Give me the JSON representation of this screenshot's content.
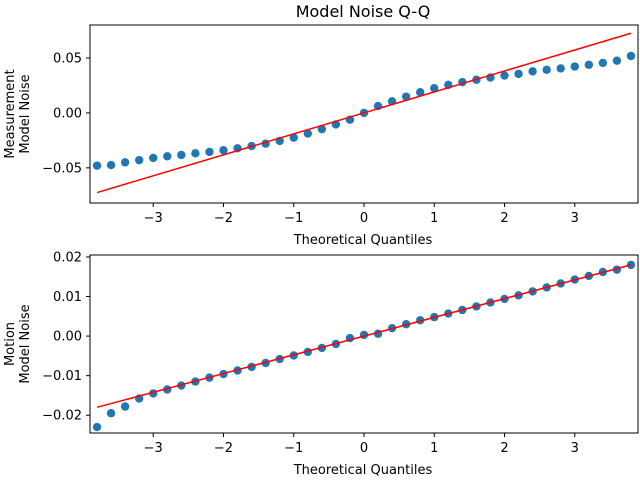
{
  "title": "Model Noise Q-Q",
  "colors": {
    "points": "#1f77b4",
    "line": "#ff0000"
  },
  "chart_data": [
    {
      "type": "scatter",
      "xlabel": "Theoretical Quantiles",
      "ylabel_lines": [
        "Measurement",
        "Model Noise"
      ],
      "xlim": [
        -3.9,
        3.9
      ],
      "ylim": [
        -0.082,
        0.08
      ],
      "x_ticks": [
        -3,
        -2,
        -1,
        0,
        1,
        2,
        3
      ],
      "x_tick_labels": [
        "−3",
        "−2",
        "−1",
        "0",
        "1",
        "2",
        "3"
      ],
      "y_ticks": [
        -0.05,
        0.0,
        0.05
      ],
      "y_tick_labels": [
        "−0.05",
        "0.00",
        "0.05"
      ],
      "reference_line": {
        "x": [
          -3.8,
          3.8
        ],
        "y": [
          -0.0725,
          0.0725
        ]
      },
      "points": [
        [
          -3.8,
          -0.048
        ],
        [
          -3.6,
          -0.0475
        ],
        [
          -3.4,
          -0.045
        ],
        [
          -3.2,
          -0.043
        ],
        [
          -3.0,
          -0.041
        ],
        [
          -2.8,
          -0.0395
        ],
        [
          -2.6,
          -0.0383
        ],
        [
          -2.4,
          -0.0368
        ],
        [
          -2.2,
          -0.0355
        ],
        [
          -2.0,
          -0.034
        ],
        [
          -1.8,
          -0.0322
        ],
        [
          -1.6,
          -0.0302
        ],
        [
          -1.4,
          -0.028
        ],
        [
          -1.2,
          -0.0255
        ],
        [
          -1.0,
          -0.0225
        ],
        [
          -0.8,
          -0.0188
        ],
        [
          -0.6,
          -0.0148
        ],
        [
          -0.4,
          -0.0105
        ],
        [
          -0.2,
          -0.0062
        ],
        [
          0.0,
          0.0
        ],
        [
          0.2,
          0.0062
        ],
        [
          0.4,
          0.0105
        ],
        [
          0.6,
          0.0148
        ],
        [
          0.8,
          0.0188
        ],
        [
          1.0,
          0.0225
        ],
        [
          1.2,
          0.0255
        ],
        [
          1.4,
          0.028
        ],
        [
          1.6,
          0.0302
        ],
        [
          1.8,
          0.0322
        ],
        [
          2.0,
          0.034
        ],
        [
          2.2,
          0.0355
        ],
        [
          2.4,
          0.0378
        ],
        [
          2.6,
          0.0392
        ],
        [
          2.8,
          0.0405
        ],
        [
          3.0,
          0.0422
        ],
        [
          3.2,
          0.0438
        ],
        [
          3.4,
          0.0455
        ],
        [
          3.6,
          0.0475
        ],
        [
          3.8,
          0.0518
        ]
      ]
    },
    {
      "type": "scatter",
      "xlabel": "Theoretical Quantiles",
      "ylabel_lines": [
        "Motion",
        "Model Noise"
      ],
      "xlim": [
        -3.9,
        3.9
      ],
      "ylim": [
        -0.0245,
        0.0205
      ],
      "x_ticks": [
        -3,
        -2,
        -1,
        0,
        1,
        2,
        3
      ],
      "x_tick_labels": [
        "−3",
        "−2",
        "−1",
        "0",
        "1",
        "2",
        "3"
      ],
      "y_ticks": [
        -0.02,
        -0.01,
        0.0,
        0.01,
        0.02
      ],
      "y_tick_labels": [
        "−0.02",
        "−0.01",
        "0.00",
        "0.01",
        "0.02"
      ],
      "reference_line": {
        "x": [
          -3.8,
          3.8
        ],
        "y": [
          -0.018,
          0.018
        ]
      },
      "points": [
        [
          -3.8,
          -0.023
        ],
        [
          -3.6,
          -0.0195
        ],
        [
          -3.4,
          -0.0178
        ],
        [
          -3.2,
          -0.0158
        ],
        [
          -3.0,
          -0.0145
        ],
        [
          -2.8,
          -0.0135
        ],
        [
          -2.6,
          -0.0125
        ],
        [
          -2.4,
          -0.0115
        ],
        [
          -2.2,
          -0.0105
        ],
        [
          -2.0,
          -0.0096
        ],
        [
          -1.8,
          -0.0087
        ],
        [
          -1.6,
          -0.0078
        ],
        [
          -1.4,
          -0.0068
        ],
        [
          -1.2,
          -0.0058
        ],
        [
          -1.0,
          -0.0049
        ],
        [
          -0.8,
          -0.004
        ],
        [
          -0.6,
          -0.003
        ],
        [
          -0.4,
          -0.002
        ],
        [
          -0.2,
          -0.0005
        ],
        [
          0.0,
          0.0003
        ],
        [
          0.2,
          0.0006
        ],
        [
          0.4,
          0.002
        ],
        [
          0.6,
          0.003
        ],
        [
          0.8,
          0.004
        ],
        [
          1.0,
          0.0048
        ],
        [
          1.2,
          0.0057
        ],
        [
          1.4,
          0.0066
        ],
        [
          1.6,
          0.0075
        ],
        [
          1.8,
          0.0085
        ],
        [
          2.0,
          0.0094
        ],
        [
          2.2,
          0.0103
        ],
        [
          2.4,
          0.0113
        ],
        [
          2.6,
          0.0123
        ],
        [
          2.8,
          0.0133
        ],
        [
          3.0,
          0.0143
        ],
        [
          3.2,
          0.0152
        ],
        [
          3.4,
          0.0162
        ],
        [
          3.6,
          0.0168
        ],
        [
          3.8,
          0.018
        ]
      ]
    }
  ]
}
